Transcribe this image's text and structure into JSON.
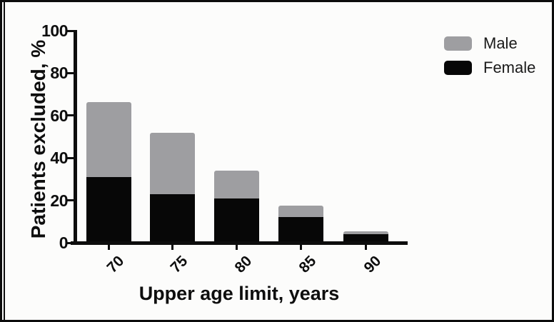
{
  "figure": {
    "background": "#fcfcfb",
    "border_color": "#0c0c0c",
    "bar_black": "#070707",
    "bar_gray": "#9e9ea1"
  },
  "chart_data": {
    "type": "bar",
    "stacked": true,
    "title": "",
    "xlabel": "Upper age limit, years",
    "ylabel": "Patients excluded, %",
    "categories": [
      "70",
      "75",
      "80",
      "85",
      "90"
    ],
    "series": [
      {
        "name": "Female",
        "color": "#070707",
        "values": [
          31,
          23,
          21,
          12,
          4
        ]
      },
      {
        "name": "Male",
        "color": "#9e9ea1",
        "values": [
          35.5,
          29,
          13,
          5.5,
          1.5
        ]
      }
    ],
    "totals": [
      66.5,
      52,
      34,
      17.5,
      5.5
    ],
    "ylim": [
      0,
      100
    ],
    "y_ticks": [
      0,
      20,
      40,
      60,
      80,
      100
    ],
    "grid": false,
    "legend_position": "top-right",
    "legend": [
      {
        "label": "Male",
        "color": "#9e9ea1"
      },
      {
        "label": "Female",
        "color": "#070707"
      }
    ]
  }
}
